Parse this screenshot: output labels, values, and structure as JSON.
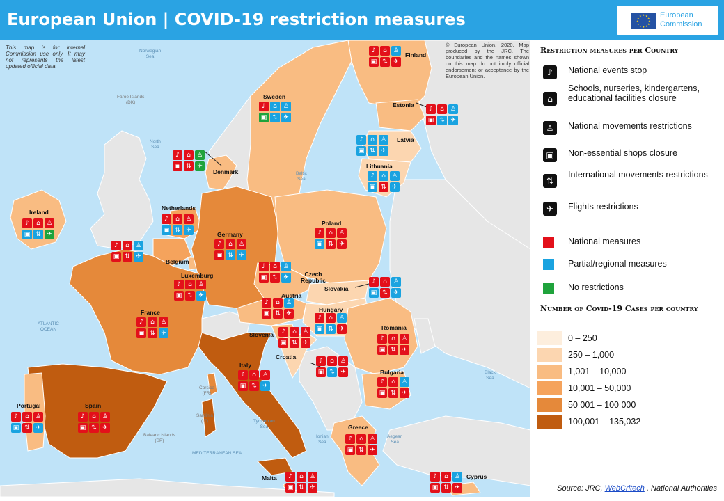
{
  "header": {
    "title": "European Union | COVID-19 restriction measures"
  },
  "logo": {
    "line1": "European",
    "line2": "Commission"
  },
  "notes": {
    "internal": "This map is for internal Commission use only. It may not represents the latest updated official data.",
    "copyright": "© European Union, 2020. Map produced by the JRC. The boundaries and the names shown on this map do not imply official endorsement or acceptance by the European Union."
  },
  "colors": {
    "national": "#e3101a",
    "partial": "#1aa3e0",
    "none": "#1fa33c",
    "sea": "#bfe3f8",
    "non_eu": "#e8e8e8",
    "cases_0_250": "#fdeedd",
    "cases_250_1000": "#fcd6b0",
    "cases_1001_10000": "#f9bc82",
    "cases_10001_50000": "#f5a35c",
    "cases_50001_100000": "#e5893a",
    "cases_100001_135032": "#c05c10"
  },
  "seas": [
    {
      "id": "norwegian",
      "label": "Norwegian\nSea"
    },
    {
      "id": "north",
      "label": "North\nSea"
    },
    {
      "id": "baltic",
      "label": "Baltic\nSea"
    },
    {
      "id": "atlantic",
      "label": "ATLANTIC\nOCEAN"
    },
    {
      "id": "black",
      "label": "Black\nSea"
    },
    {
      "id": "tyrrhenian",
      "label": "Tyrrhenian\nSea"
    },
    {
      "id": "ionian",
      "label": "Ionian\nSea"
    },
    {
      "id": "aegean",
      "label": "Aegean\nSea"
    },
    {
      "id": "mediterranean",
      "label": "MEDITERRANEAN SEA"
    }
  ],
  "islands": [
    {
      "id": "faroe",
      "label": "Faroe Islands\n(DK)"
    },
    {
      "id": "corsica",
      "label": "Corsica\n(FR)"
    },
    {
      "id": "sardinia",
      "label": "Sardinia\n(IT)"
    },
    {
      "id": "balearic",
      "label": "Balearic Islands\n(SP)"
    }
  ],
  "countries": [
    {
      "name": "Finland",
      "icons": [
        "red",
        "red",
        "blue",
        "red",
        "red",
        "red"
      ]
    },
    {
      "name": "Sweden",
      "icons": [
        "red",
        "blue",
        "blue",
        "green",
        "blue",
        "blue"
      ]
    },
    {
      "name": "Estonia",
      "icons": [
        "red",
        "red",
        "blue",
        "red",
        "blue",
        "blue"
      ]
    },
    {
      "name": "Latvia",
      "icons": [
        "blue",
        "blue",
        "blue",
        "blue",
        "blue",
        "blue"
      ]
    },
    {
      "name": "Lithuania",
      "icons": [
        "blue",
        "blue",
        "blue",
        "blue",
        "red",
        "blue"
      ]
    },
    {
      "name": "Denmark",
      "icons": [
        "red",
        "red",
        "green",
        "red",
        "red",
        "green"
      ]
    },
    {
      "name": "Ireland",
      "icons": [
        "red",
        "red",
        "red",
        "blue",
        "blue",
        "green"
      ]
    },
    {
      "name": "Netherlands",
      "icons": [
        "red",
        "red",
        "red",
        "blue",
        "blue",
        "blue"
      ]
    },
    {
      "name": "Germany",
      "icons": [
        "red",
        "red",
        "red",
        "red",
        "blue",
        "blue"
      ]
    },
    {
      "name": "Poland",
      "icons": [
        "red",
        "red",
        "red",
        "blue",
        "red",
        "red"
      ]
    },
    {
      "name": "Belgium",
      "icons": [
        "red",
        "red",
        "blue",
        "red",
        "red",
        "blue"
      ]
    },
    {
      "name": "Luxemburg",
      "icons": [
        "red",
        "red",
        "red",
        "red",
        "red",
        "blue"
      ]
    },
    {
      "name": "Czech Republic",
      "icons": [
        "red",
        "red",
        "blue",
        "red",
        "red",
        "blue"
      ]
    },
    {
      "name": "Slovakia",
      "icons": [
        "red",
        "red",
        "blue",
        "blue",
        "red",
        "blue"
      ]
    },
    {
      "name": "Austria",
      "icons": [
        "red",
        "red",
        "blue",
        "red",
        "red",
        "red"
      ]
    },
    {
      "name": "Hungary",
      "icons": [
        "red",
        "red",
        "blue",
        "blue",
        "blue",
        "red"
      ]
    },
    {
      "name": "France",
      "icons": [
        "red",
        "red",
        "red",
        "red",
        "red",
        "blue"
      ]
    },
    {
      "name": "Slovenia",
      "icons": [
        "red",
        "red",
        "red",
        "red",
        "red",
        "red"
      ]
    },
    {
      "name": "Romania",
      "icons": [
        "red",
        "red",
        "red",
        "red",
        "red",
        "red"
      ]
    },
    {
      "name": "Croatia",
      "icons": [
        "red",
        "red",
        "red",
        "red",
        "blue",
        "red"
      ]
    },
    {
      "name": "Italy",
      "icons": [
        "red",
        "red",
        "red",
        "red",
        "red",
        "blue"
      ]
    },
    {
      "name": "Bulgaria",
      "icons": [
        "red",
        "red",
        "blue",
        "red",
        "red",
        "red"
      ]
    },
    {
      "name": "Portugal",
      "icons": [
        "red",
        "red",
        "red",
        "blue",
        "red",
        "blue"
      ]
    },
    {
      "name": "Spain",
      "icons": [
        "red",
        "red",
        "red",
        "red",
        "red",
        "red"
      ]
    },
    {
      "name": "Greece",
      "icons": [
        "red",
        "red",
        "red",
        "red",
        "red",
        "red"
      ]
    },
    {
      "name": "Malta",
      "icons": [
        "red",
        "red",
        "red",
        "red",
        "red",
        "red"
      ]
    },
    {
      "name": "Cyprus",
      "icons": [
        "red",
        "red",
        "blue",
        "red",
        "red",
        "red"
      ]
    }
  ],
  "legend": {
    "restriction_title": "Restriction measures per Country",
    "measures": [
      {
        "icon": "national-events-icon",
        "label": "National events stop"
      },
      {
        "icon": "school-icon",
        "label": "Schools, nurseries, kindergartens, educational facilities closure"
      },
      {
        "icon": "walking-person-icon",
        "label": "National movements restrictions"
      },
      {
        "icon": "shop-icon",
        "label": "Non-essential shops closure"
      },
      {
        "icon": "arrows-icon",
        "label": "International movements restrictions"
      },
      {
        "icon": "plane-icon",
        "label": "Flights restrictions"
      }
    ],
    "types": [
      {
        "label": "National measures"
      },
      {
        "label": "Partial/regional measures"
      },
      {
        "label": "No restrictions"
      }
    ],
    "cases_title": "Number of Covid-19 Cases per country",
    "cases": [
      {
        "label": "0 – 250"
      },
      {
        "label": "250 – 1,000"
      },
      {
        "label": "1,001 – 10,000"
      },
      {
        "label": "10,001 – 50,000"
      },
      {
        "label": "50 001 – 100 000"
      },
      {
        "label": "100,001 – 135,032"
      }
    ]
  },
  "source": {
    "prefix": "Source: JRC, ",
    "link": "WebCritech",
    "suffix": " , National Authorities"
  }
}
